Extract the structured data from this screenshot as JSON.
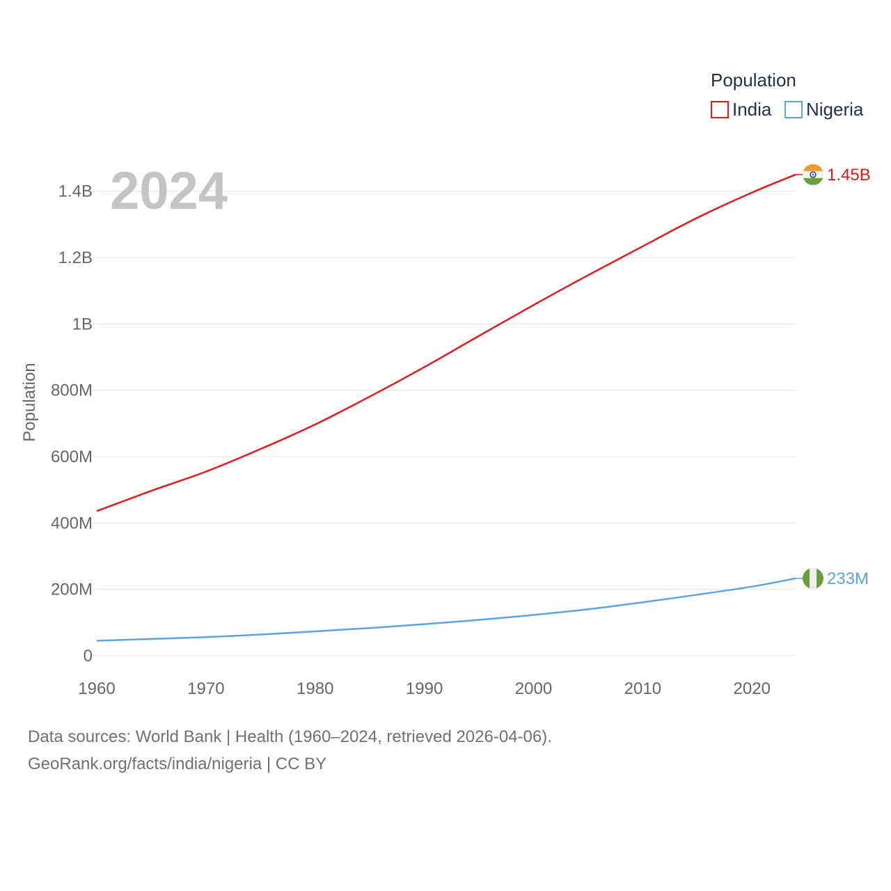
{
  "chart_data": {
    "type": "line",
    "title": "",
    "legend_title": "Population",
    "legend_position": "top-right",
    "year_label": "2024",
    "xlabel": "",
    "ylabel": "Population",
    "xlim": [
      1960,
      2024
    ],
    "ylim": [
      0,
      1500000000
    ],
    "x_ticks": [
      1960,
      1970,
      1980,
      1990,
      2000,
      2010,
      2020
    ],
    "x_tick_labels": [
      "1960",
      "1970",
      "1980",
      "1990",
      "2000",
      "2010",
      "2020"
    ],
    "y_ticks": [
      0,
      200000000,
      400000000,
      600000000,
      800000000,
      1000000000,
      1200000000,
      1400000000
    ],
    "y_tick_labels": [
      "0",
      "200M",
      "400M",
      "600M",
      "800M",
      "1B",
      "1.2B",
      "1.4B"
    ],
    "grid": true,
    "series": [
      {
        "name": "India",
        "color": "#e8171c",
        "end_label": "1.45B",
        "flag_icon": "india-flag-icon",
        "x": [
          1960,
          1965,
          1970,
          1975,
          1980,
          1985,
          1990,
          1995,
          2000,
          2005,
          2010,
          2015,
          2020,
          2024
        ],
        "values": [
          436000000,
          497000000,
          555000000,
          623000000,
          697000000,
          781000000,
          870000000,
          964000000,
          1057000000,
          1147000000,
          1234000000,
          1320000000,
          1396000000,
          1450000000
        ]
      },
      {
        "name": "Nigeria",
        "color": "#5ca3e4",
        "end_label": "233M",
        "flag_icon": "nigeria-flag-icon",
        "x": [
          1960,
          1965,
          1970,
          1975,
          1980,
          1985,
          1990,
          1995,
          2000,
          2005,
          2010,
          2015,
          2020,
          2024
        ],
        "values": [
          45100000,
          50600000,
          56100000,
          64000000,
          73400000,
          83600000,
          95200000,
          108000000,
          122900000,
          140000000,
          160900000,
          184000000,
          208300000,
          233000000
        ]
      }
    ]
  },
  "footer": {
    "source": "Data sources: World Bank | Health (1960–2024, retrieved 2026-04-06).",
    "credit": "GeoRank.org/facts/india/nigeria | CC BY"
  }
}
